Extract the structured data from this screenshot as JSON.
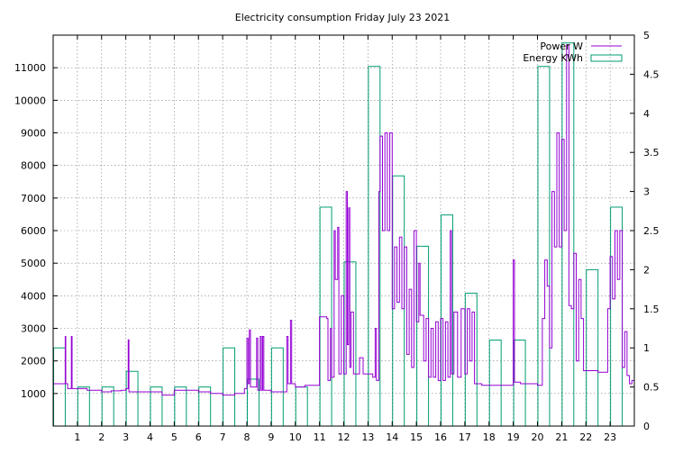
{
  "chart_data": {
    "type": "line",
    "title": "Electricity consumption Friday July 23 2021",
    "x_ticks": [
      1,
      2,
      3,
      4,
      5,
      6,
      7,
      8,
      9,
      10,
      11,
      12,
      13,
      14,
      15,
      16,
      17,
      18,
      19,
      20,
      21,
      22,
      23
    ],
    "xlim": [
      0,
      24
    ],
    "y_left": {
      "ylim": [
        0,
        12000
      ],
      "ticks": [
        1000,
        2000,
        3000,
        4000,
        5000,
        6000,
        7000,
        8000,
        9000,
        10000,
        11000
      ]
    },
    "y_right": {
      "ylim": [
        0,
        5
      ],
      "ticks": [
        "0",
        "0.5",
        "1",
        "1.5",
        "2",
        "2.5",
        "3",
        "3.5",
        "4",
        "4.5",
        "5"
      ]
    },
    "grid": true,
    "legend_position": "top-right",
    "series": [
      {
        "name": "Power W",
        "axis": "left",
        "color": "#9400d3",
        "style": "line",
        "points": [
          [
            0,
            1300
          ],
          [
            0.4,
            1300
          ],
          [
            0.5,
            2750
          ],
          [
            0.52,
            1300
          ],
          [
            0.6,
            1150
          ],
          [
            0.75,
            2750
          ],
          [
            0.78,
            1150
          ],
          [
            1.0,
            1150
          ],
          [
            1.4,
            1100
          ],
          [
            1.8,
            1100
          ],
          [
            2.0,
            1050
          ],
          [
            2.4,
            1080
          ],
          [
            2.8,
            1100
          ],
          [
            3.0,
            1150
          ],
          [
            3.1,
            2650
          ],
          [
            3.13,
            1050
          ],
          [
            3.4,
            1050
          ],
          [
            4.0,
            1050
          ],
          [
            4.5,
            950
          ],
          [
            5.0,
            1100
          ],
          [
            5.5,
            1100
          ],
          [
            6.0,
            1050
          ],
          [
            6.5,
            1000
          ],
          [
            7.0,
            950
          ],
          [
            7.5,
            1000
          ],
          [
            7.9,
            1150
          ],
          [
            8.0,
            2700
          ],
          [
            8.05,
            1300
          ],
          [
            8.1,
            2950
          ],
          [
            8.15,
            1200
          ],
          [
            8.3,
            1200
          ],
          [
            8.4,
            2700
          ],
          [
            8.45,
            1100
          ],
          [
            8.55,
            2750
          ],
          [
            8.6,
            1100
          ],
          [
            8.65,
            2750
          ],
          [
            8.7,
            1100
          ],
          [
            9.0,
            1050
          ],
          [
            9.5,
            1050
          ],
          [
            9.65,
            2750
          ],
          [
            9.7,
            1300
          ],
          [
            9.8,
            3250
          ],
          [
            9.85,
            1300
          ],
          [
            10.0,
            1200
          ],
          [
            10.4,
            1250
          ],
          [
            10.8,
            1250
          ],
          [
            11.0,
            3350
          ],
          [
            11.3,
            3300
          ],
          [
            11.35,
            1400
          ],
          [
            11.45,
            3000
          ],
          [
            11.5,
            1500
          ],
          [
            11.6,
            6000
          ],
          [
            11.65,
            4500
          ],
          [
            11.75,
            6100
          ],
          [
            11.8,
            1600
          ],
          [
            11.9,
            4000
          ],
          [
            12.0,
            1600
          ],
          [
            12.1,
            7200
          ],
          [
            12.15,
            2500
          ],
          [
            12.2,
            6700
          ],
          [
            12.25,
            1800
          ],
          [
            12.3,
            3500
          ],
          [
            12.4,
            1600
          ],
          [
            12.6,
            1600
          ],
          [
            12.65,
            2100
          ],
          [
            12.8,
            1600
          ],
          [
            13.0,
            1600
          ],
          [
            13.2,
            1500
          ],
          [
            13.3,
            3000
          ],
          [
            13.35,
            1400
          ],
          [
            13.45,
            7200
          ],
          [
            13.5,
            8900
          ],
          [
            13.6,
            6000
          ],
          [
            13.7,
            9000
          ],
          [
            13.8,
            6000
          ],
          [
            13.9,
            9000
          ],
          [
            14.0,
            3600
          ],
          [
            14.1,
            5500
          ],
          [
            14.2,
            3800
          ],
          [
            14.3,
            5800
          ],
          [
            14.4,
            3600
          ],
          [
            14.5,
            5500
          ],
          [
            14.6,
            2200
          ],
          [
            14.7,
            4200
          ],
          [
            14.8,
            1800
          ],
          [
            14.9,
            6000
          ],
          [
            15.0,
            3200
          ],
          [
            15.1,
            5000
          ],
          [
            15.15,
            3400
          ],
          [
            15.3,
            2000
          ],
          [
            15.4,
            3300
          ],
          [
            15.5,
            1500
          ],
          [
            15.6,
            3000
          ],
          [
            15.7,
            1500
          ],
          [
            15.8,
            3200
          ],
          [
            15.9,
            1400
          ],
          [
            16.0,
            3300
          ],
          [
            16.1,
            1400
          ],
          [
            16.2,
            3200
          ],
          [
            16.3,
            1500
          ],
          [
            16.4,
            6000
          ],
          [
            16.45,
            1600
          ],
          [
            16.55,
            3500
          ],
          [
            16.7,
            1500
          ],
          [
            16.85,
            3600
          ],
          [
            17.0,
            1600
          ],
          [
            17.1,
            3600
          ],
          [
            17.2,
            2000
          ],
          [
            17.3,
            3500
          ],
          [
            17.4,
            1300
          ],
          [
            17.7,
            1250
          ],
          [
            18.0,
            1250
          ],
          [
            18.5,
            1250
          ],
          [
            18.9,
            1250
          ],
          [
            19.0,
            5100
          ],
          [
            19.05,
            1350
          ],
          [
            19.3,
            1300
          ],
          [
            19.5,
            1300
          ],
          [
            19.8,
            1300
          ],
          [
            20.0,
            1250
          ],
          [
            20.2,
            3300
          ],
          [
            20.3,
            5100
          ],
          [
            20.4,
            4300
          ],
          [
            20.5,
            2400
          ],
          [
            20.6,
            7200
          ],
          [
            20.7,
            5500
          ],
          [
            20.8,
            9000
          ],
          [
            20.9,
            5500
          ],
          [
            21.0,
            8800
          ],
          [
            21.1,
            6000
          ],
          [
            21.2,
            11700
          ],
          [
            21.3,
            3700
          ],
          [
            21.4,
            3600
          ],
          [
            21.5,
            5300
          ],
          [
            21.6,
            2000
          ],
          [
            21.7,
            4500
          ],
          [
            21.8,
            3300
          ],
          [
            21.9,
            1700
          ],
          [
            22.2,
            1700
          ],
          [
            22.5,
            1650
          ],
          [
            22.8,
            1650
          ],
          [
            22.9,
            3600
          ],
          [
            23.0,
            5200
          ],
          [
            23.1,
            3900
          ],
          [
            23.2,
            6000
          ],
          [
            23.3,
            4500
          ],
          [
            23.4,
            6000
          ],
          [
            23.5,
            1800
          ],
          [
            23.6,
            2900
          ],
          [
            23.7,
            1550
          ],
          [
            23.8,
            1300
          ],
          [
            23.9,
            1400
          ],
          [
            24.0,
            3300
          ]
        ]
      },
      {
        "name": "Energy KWh",
        "axis": "right",
        "color": "#009e73",
        "style": "boxes",
        "bars": [
          {
            "x": 0,
            "value": 1.0
          },
          {
            "x": 1,
            "value": 0.5
          },
          {
            "x": 2,
            "value": 0.5
          },
          {
            "x": 3,
            "value": 0.7
          },
          {
            "x": 4,
            "value": 0.5
          },
          {
            "x": 5,
            "value": 0.5
          },
          {
            "x": 6,
            "value": 0.5
          },
          {
            "x": 7,
            "value": 1.0
          },
          {
            "x": 8,
            "value": 0.6
          },
          {
            "x": 9,
            "value": 1.0
          },
          {
            "x": 10,
            "value": 0.5
          },
          {
            "x": 11,
            "value": 2.8
          },
          {
            "x": 12,
            "value": 2.1
          },
          {
            "x": 13,
            "value": 4.6
          },
          {
            "x": 14,
            "value": 3.2
          },
          {
            "x": 15,
            "value": 2.3
          },
          {
            "x": 16,
            "value": 2.7
          },
          {
            "x": 17,
            "value": 1.7
          },
          {
            "x": 18,
            "value": 1.1
          },
          {
            "x": 19,
            "value": 1.1
          },
          {
            "x": 20,
            "value": 4.6
          },
          {
            "x": 21,
            "value": 4.9
          },
          {
            "x": 22,
            "value": 2.0
          },
          {
            "x": 23,
            "value": 2.8
          }
        ]
      }
    ]
  }
}
